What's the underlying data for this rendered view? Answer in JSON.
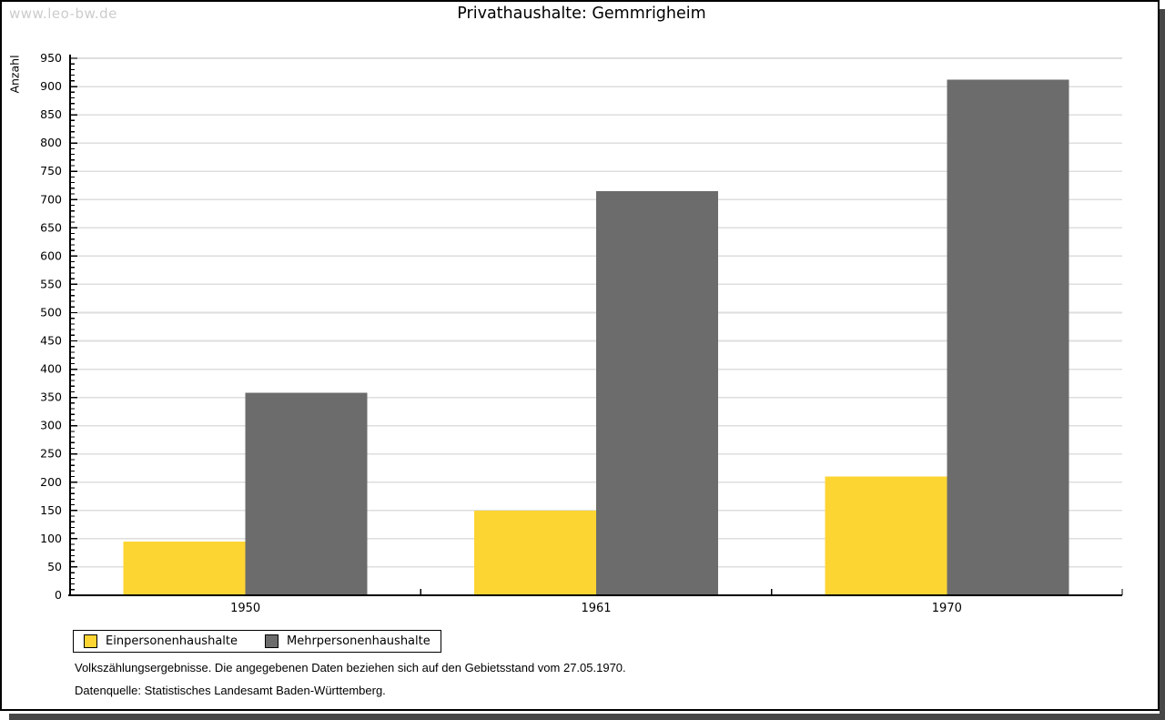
{
  "watermark": "www.leo-bw.de",
  "chart_data": {
    "type": "bar",
    "title": "Privathaushalte: Gemmrigheim",
    "ylabel": "Anzahl",
    "xlabel": "",
    "categories": [
      "1950",
      "1961",
      "1970"
    ],
    "series": [
      {
        "name": "Einpersonenhaushalte",
        "color": "#fcd533",
        "values": [
          95,
          150,
          210
        ]
      },
      {
        "name": "Mehrpersonenhaushalte",
        "color": "#6c6c6c",
        "values": [
          358,
          715,
          912
        ]
      }
    ],
    "ylim": [
      0,
      950
    ],
    "y_major_step": 50,
    "y_minor_step": 10,
    "grid": "horizontal-major",
    "gridline_color": "#dedede",
    "axis_color": "#000000",
    "legend_position": "bottom-left-box"
  },
  "notes": {
    "line1": "Volkszählungsergebnisse. Die angegebenen Daten beziehen sich auf den Gebietsstand vom 27.05.1970.",
    "line2": "Datenquelle: Statistisches Landesamt Baden-Württemberg."
  },
  "frame": {
    "border_color": "#000000",
    "shadow_color": "#474747",
    "watermark_color": "#cccccc"
  }
}
